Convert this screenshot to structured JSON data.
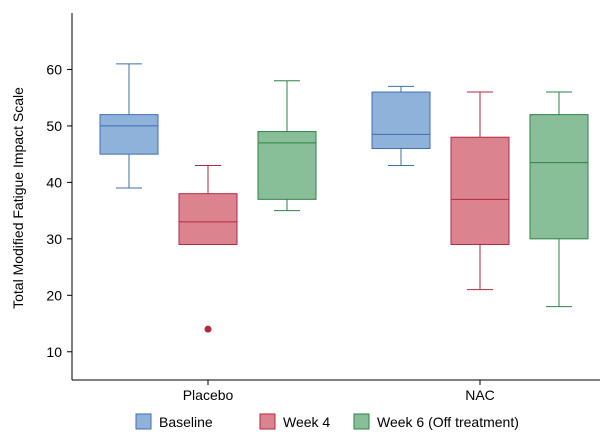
{
  "chart_data": {
    "type": "box",
    "xlabel": "",
    "ylabel": "Total Modified Fatigue Impact Scale",
    "ylim": [
      5,
      70
    ],
    "yticks": [
      10,
      20,
      30,
      40,
      50,
      60
    ],
    "categories": [
      "Placebo",
      "NAC"
    ],
    "legend_position": "bottom",
    "series": [
      {
        "name": "Baseline",
        "fill": "#8EB2DA",
        "stroke": "#3D6FB3",
        "boxes": [
          {
            "category": "Placebo",
            "whisker_low": 39,
            "q1": 45,
            "median": 50,
            "q3": 52,
            "whisker_high": 61,
            "outliers": []
          },
          {
            "category": "NAC",
            "whisker_low": 43,
            "q1": 46,
            "median": 48.5,
            "q3": 56,
            "whisker_high": 57,
            "outliers": []
          }
        ]
      },
      {
        "name": "Week 4",
        "fill": "#DB8490",
        "stroke": "#B5293E",
        "boxes": [
          {
            "category": "Placebo",
            "whisker_low": 29,
            "q1": 29,
            "median": 33,
            "q3": 38,
            "whisker_high": 43,
            "outliers": [
              14
            ]
          },
          {
            "category": "NAC",
            "whisker_low": 21,
            "q1": 29,
            "median": 37,
            "q3": 48,
            "whisker_high": 56,
            "outliers": []
          }
        ]
      },
      {
        "name": "Week 6 (Off treatment)",
        "fill": "#88BF98",
        "stroke": "#2E8048",
        "boxes": [
          {
            "category": "Placebo",
            "whisker_low": 35,
            "q1": 37,
            "median": 47,
            "q3": 49,
            "whisker_high": 58,
            "outliers": []
          },
          {
            "category": "NAC",
            "whisker_low": 18,
            "q1": 30,
            "median": 43.5,
            "q3": 52,
            "whisker_high": 56,
            "outliers": []
          }
        ]
      }
    ]
  }
}
